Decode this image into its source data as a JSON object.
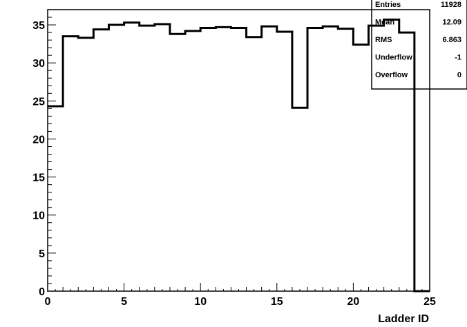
{
  "chart_data": {
    "type": "histogram",
    "title": "",
    "xlabel": "Ladder ID",
    "ylabel": "",
    "xlim": [
      0,
      25
    ],
    "ylim": [
      0,
      37
    ],
    "grid": false,
    "x_ticks": [
      0,
      5,
      10,
      15,
      20,
      25
    ],
    "y_ticks": [
      0,
      5,
      10,
      15,
      20,
      25,
      30,
      35
    ],
    "bin_edges": [
      0,
      1,
      2,
      3,
      4,
      5,
      6,
      7,
      8,
      9,
      10,
      11,
      12,
      13,
      14,
      15,
      16,
      17,
      18,
      19,
      20,
      21,
      22,
      23,
      24,
      25
    ],
    "values": [
      24.3,
      33.5,
      33.3,
      34.4,
      35.0,
      35.3,
      34.9,
      35.1,
      33.8,
      34.2,
      34.6,
      34.7,
      34.6,
      33.4,
      34.8,
      34.1,
      24.1,
      34.6,
      34.8,
      34.5,
      32.4,
      34.9,
      35.7,
      34.0,
      0
    ]
  },
  "stats_box": {
    "rows": [
      {
        "label": "Entries",
        "value": "11928"
      },
      {
        "label": "Mean",
        "value": "12.09"
      },
      {
        "label": "RMS",
        "value": "6.863"
      },
      {
        "label": "Underflow",
        "value": "-1"
      },
      {
        "label": "Overflow",
        "value": "0"
      }
    ]
  }
}
